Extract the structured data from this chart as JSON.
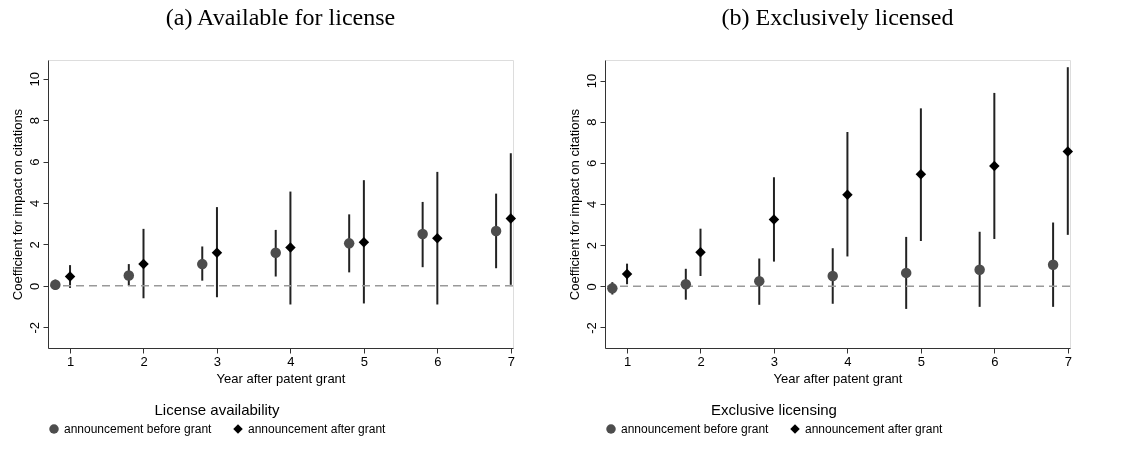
{
  "chart_data": [
    {
      "type": "scatter",
      "title": "(a) Available for license",
      "xlabel": "Year after patent grant",
      "ylabel": "Coefficient for impact on citations",
      "legend_title": "License availability",
      "legend": "bottom",
      "grid": false,
      "xlim": [
        0.7,
        7.03
      ],
      "xticks": [
        1,
        2,
        3,
        4,
        5,
        6,
        7
      ],
      "ylim": [
        -3,
        10.9
      ],
      "yticks": [
        -2,
        0,
        2,
        4,
        6,
        8,
        10
      ],
      "ref_lines": [
        {
          "axis": "y",
          "value": 0,
          "color": "#999999",
          "line_style": "dashed"
        }
      ],
      "series": [
        {
          "name": "announcement before grant",
          "color": "#4d4d4d",
          "marker": "circle",
          "x": [
            0.8,
            1.8,
            2.8,
            3.8,
            4.8,
            5.8,
            6.8
          ],
          "values": [
            0.05,
            0.5,
            1.05,
            1.6,
            2.05,
            2.5,
            2.65
          ],
          "errors": [
            [
              -0.2,
              0.3
            ],
            [
              0,
              1.05
            ],
            [
              0.25,
              1.9
            ],
            [
              0.45,
              2.7
            ],
            [
              0.65,
              3.45
            ],
            [
              0.9,
              4.05
            ],
            [
              0.85,
              4.45
            ]
          ]
        },
        {
          "name": "announcement after grant",
          "color": "#000000",
          "marker": "diamond",
          "x": [
            1,
            2,
            3,
            4,
            5,
            6,
            7
          ],
          "values": [
            0.45,
            1.05,
            1.6,
            1.85,
            2.1,
            2.3,
            3.25
          ],
          "errors": [
            [
              -0.1,
              1.0
            ],
            [
              -0.6,
              2.75
            ],
            [
              -0.55,
              3.8
            ],
            [
              -0.9,
              4.55
            ],
            [
              -0.85,
              5.1
            ],
            [
              -0.9,
              5.5
            ],
            [
              0.05,
              6.4
            ]
          ]
        }
      ]
    },
    {
      "type": "scatter",
      "title": "(b) Exclusively licensed",
      "xlabel": "Year after patent grant",
      "ylabel": "Coefficient for impact on citations",
      "legend_title": "Exclusive licensing",
      "legend": "bottom",
      "grid": false,
      "xlim": [
        0.7,
        7.03
      ],
      "xticks": [
        1,
        2,
        3,
        4,
        5,
        6,
        7
      ],
      "ylim": [
        -3,
        11
      ],
      "yticks": [
        -2,
        0,
        2,
        4,
        6,
        8,
        10
      ],
      "ref_lines": [
        {
          "axis": "y",
          "value": 0,
          "color": "#999999",
          "line_style": "dashed"
        }
      ],
      "series": [
        {
          "name": "announcement before grant",
          "color": "#4d4d4d",
          "marker": "circle",
          "x": [
            0.8,
            1.8,
            2.8,
            3.8,
            4.8,
            5.8,
            6.8
          ],
          "values": [
            -0.1,
            0.1,
            0.25,
            0.5,
            0.65,
            0.8,
            1.05
          ],
          "errors": [
            [
              -0.4,
              0.2
            ],
            [
              -0.65,
              0.85
            ],
            [
              -0.9,
              1.35
            ],
            [
              -0.85,
              1.85
            ],
            [
              -1.1,
              2.4
            ],
            [
              -1.0,
              2.65
            ],
            [
              -1.0,
              3.1
            ]
          ]
        },
        {
          "name": "announcement after grant",
          "color": "#000000",
          "marker": "diamond",
          "x": [
            1,
            2,
            3,
            4,
            5,
            6,
            7
          ],
          "values": [
            0.6,
            1.65,
            3.25,
            4.45,
            5.45,
            5.85,
            6.55
          ],
          "errors": [
            [
              0.1,
              1.1
            ],
            [
              0.5,
              2.8
            ],
            [
              1.2,
              5.3
            ],
            [
              1.45,
              7.5
            ],
            [
              2.2,
              8.65
            ],
            [
              2.3,
              9.4
            ],
            [
              2.5,
              10.65
            ]
          ]
        }
      ]
    }
  ]
}
